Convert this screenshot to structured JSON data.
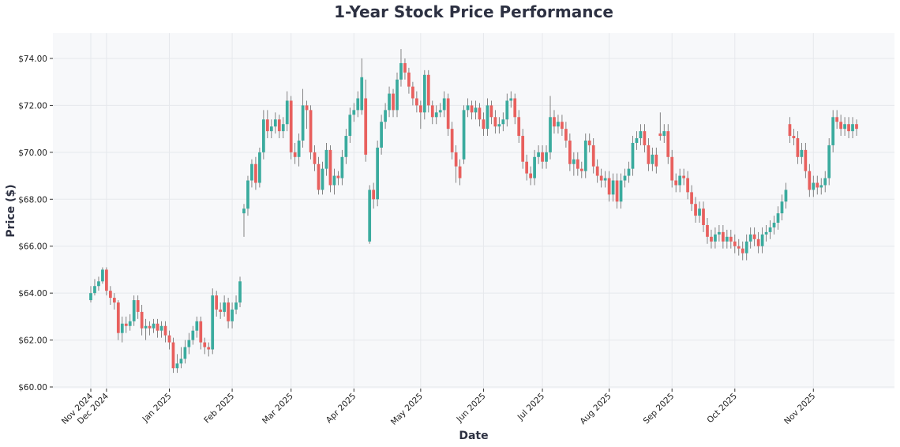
{
  "chart_data": {
    "type": "candlestick",
    "title": "1-Year Stock Price Performance",
    "xlabel": "Date",
    "ylabel": "Price ($)",
    "ylim": [
      60,
      75
    ],
    "y_ticks": [
      "$60.00",
      "$62.00",
      "$64.00",
      "$66.00",
      "$68.00",
      "$70.00",
      "$72.00",
      "$74.00"
    ],
    "y_tick_values": [
      60,
      62,
      64,
      66,
      68,
      70,
      72,
      74
    ],
    "x_ticks": [
      {
        "label": "Nov 2024",
        "at": 0
      },
      {
        "label": "Dec 2024",
        "at": 4
      },
      {
        "label": "Jan 2025",
        "at": 20
      },
      {
        "label": "Feb 2025",
        "at": 36
      },
      {
        "label": "Mar 2025",
        "at": 51
      },
      {
        "label": "Apr 2025",
        "at": 67
      },
      {
        "label": "May 2025",
        "at": 84
      },
      {
        "label": "Jun 2025",
        "at": 100
      },
      {
        "label": "Jul 2025",
        "at": 115
      },
      {
        "label": "Aug 2025",
        "at": 132
      },
      {
        "label": "Sep 2025",
        "at": 148
      },
      {
        "label": "Oct 2025",
        "at": 164
      },
      {
        "label": "Nov 2025",
        "at": 184
      }
    ],
    "grid": true,
    "colors": {
      "up": "#3aab9e",
      "down": "#e8605e",
      "wick": "#666666",
      "background": "#f7f8fa"
    },
    "ohlc_fields": [
      "open",
      "high",
      "low",
      "close"
    ],
    "candles": [
      [
        63.7,
        64.3,
        63.6,
        64.0
      ],
      [
        64.0,
        64.6,
        63.9,
        64.3
      ],
      [
        64.3,
        64.7,
        64.1,
        64.5
      ],
      [
        64.5,
        65.1,
        64.4,
        65.0
      ],
      [
        65.0,
        65.1,
        63.9,
        64.1
      ],
      [
        64.1,
        64.3,
        63.5,
        63.8
      ],
      [
        63.8,
        64.0,
        63.3,
        63.6
      ],
      [
        63.6,
        63.7,
        62.0,
        62.3
      ],
      [
        62.3,
        63.0,
        61.9,
        62.7
      ],
      [
        62.7,
        63.0,
        62.3,
        62.6
      ],
      [
        62.6,
        63.1,
        62.4,
        62.8
      ],
      [
        62.8,
        63.9,
        62.6,
        63.7
      ],
      [
        63.7,
        63.9,
        62.9,
        63.2
      ],
      [
        63.2,
        63.5,
        62.2,
        62.5
      ],
      [
        62.5,
        62.9,
        62.0,
        62.6
      ],
      [
        62.6,
        62.8,
        62.2,
        62.5
      ],
      [
        62.5,
        62.9,
        62.3,
        62.7
      ],
      [
        62.7,
        62.9,
        62.1,
        62.4
      ],
      [
        62.4,
        62.8,
        62.1,
        62.6
      ],
      [
        62.6,
        62.8,
        61.9,
        62.2
      ],
      [
        62.2,
        62.4,
        61.6,
        61.9
      ],
      [
        61.9,
        62.1,
        60.6,
        60.8
      ],
      [
        60.8,
        61.4,
        60.6,
        61.0
      ],
      [
        61.0,
        61.7,
        60.8,
        61.2
      ],
      [
        61.2,
        62.0,
        61.0,
        61.7
      ],
      [
        61.7,
        62.3,
        61.4,
        62.0
      ],
      [
        62.0,
        62.6,
        61.8,
        62.4
      ],
      [
        62.4,
        63.0,
        62.1,
        62.8
      ],
      [
        62.8,
        63.0,
        61.6,
        61.9
      ],
      [
        61.9,
        62.1,
        61.4,
        61.7
      ],
      [
        61.7,
        61.9,
        61.3,
        61.6
      ],
      [
        61.6,
        64.2,
        61.4,
        63.9
      ],
      [
        63.9,
        64.1,
        63.0,
        63.3
      ],
      [
        63.3,
        63.6,
        62.9,
        63.2
      ],
      [
        63.2,
        63.9,
        63.0,
        63.6
      ],
      [
        63.6,
        63.8,
        62.5,
        62.8
      ],
      [
        62.8,
        63.6,
        62.5,
        63.3
      ],
      [
        63.3,
        63.9,
        63.1,
        63.6
      ],
      [
        63.6,
        64.7,
        63.4,
        64.5
      ],
      [
        67.4,
        67.8,
        66.4,
        67.6
      ],
      [
        67.6,
        69.0,
        67.3,
        68.8
      ],
      [
        68.8,
        69.7,
        68.5,
        69.5
      ],
      [
        69.5,
        69.8,
        68.4,
        68.7
      ],
      [
        68.7,
        70.2,
        68.5,
        70.0
      ],
      [
        70.0,
        71.8,
        69.7,
        71.4
      ],
      [
        71.4,
        71.8,
        70.6,
        70.9
      ],
      [
        70.9,
        71.4,
        70.6,
        71.1
      ],
      [
        71.1,
        71.7,
        70.8,
        71.4
      ],
      [
        71.4,
        71.6,
        70.6,
        70.9
      ],
      [
        70.9,
        71.5,
        70.6,
        71.2
      ],
      [
        71.2,
        72.6,
        70.9,
        72.2
      ],
      [
        72.2,
        72.4,
        69.7,
        70.0
      ],
      [
        70.0,
        70.4,
        69.5,
        69.8
      ],
      [
        69.8,
        70.8,
        69.4,
        70.5
      ],
      [
        70.5,
        72.7,
        70.2,
        72.0
      ],
      [
        72.0,
        72.2,
        71.0,
        71.8
      ],
      [
        71.8,
        72.0,
        69.7,
        70.0
      ],
      [
        70.0,
        70.3,
        69.2,
        69.5
      ],
      [
        69.5,
        69.8,
        68.2,
        68.4
      ],
      [
        68.4,
        69.6,
        68.2,
        69.3
      ],
      [
        69.3,
        70.4,
        69.0,
        70.1
      ],
      [
        70.1,
        70.3,
        68.3,
        68.6
      ],
      [
        68.6,
        69.3,
        68.2,
        69.0
      ],
      [
        69.0,
        69.2,
        68.6,
        68.9
      ],
      [
        68.9,
        70.1,
        68.6,
        69.8
      ],
      [
        69.8,
        71.0,
        69.5,
        70.7
      ],
      [
        70.7,
        71.9,
        70.4,
        71.6
      ],
      [
        71.6,
        72.1,
        71.3,
        71.8
      ],
      [
        71.8,
        72.6,
        71.5,
        72.3
      ],
      [
        71.8,
        74.0,
        71.6,
        73.2
      ],
      [
        72.3,
        73.1,
        69.6,
        69.9
      ],
      [
        66.2,
        68.6,
        66.1,
        68.4
      ],
      [
        68.4,
        68.7,
        67.6,
        68.0
      ],
      [
        68.0,
        70.5,
        67.7,
        70.2
      ],
      [
        70.2,
        71.6,
        69.9,
        71.3
      ],
      [
        71.3,
        72.1,
        71.0,
        71.8
      ],
      [
        71.8,
        72.8,
        71.5,
        72.5
      ],
      [
        72.5,
        72.7,
        71.5,
        71.8
      ],
      [
        71.8,
        73.4,
        71.5,
        73.1
      ],
      [
        73.1,
        74.4,
        72.8,
        73.8
      ],
      [
        73.8,
        74.0,
        73.1,
        73.4
      ],
      [
        73.4,
        73.6,
        72.5,
        72.8
      ],
      [
        72.8,
        73.0,
        72.0,
        72.3
      ],
      [
        72.3,
        72.6,
        71.7,
        72.0
      ],
      [
        72.0,
        72.2,
        71.0,
        71.7
      ],
      [
        71.7,
        73.5,
        71.4,
        73.3
      ],
      [
        73.3,
        73.5,
        71.7,
        72.0
      ],
      [
        72.0,
        72.2,
        71.2,
        71.5
      ],
      [
        71.5,
        72.0,
        71.2,
        71.7
      ],
      [
        71.7,
        72.1,
        71.5,
        71.8
      ],
      [
        71.8,
        72.6,
        71.5,
        72.3
      ],
      [
        72.3,
        72.5,
        70.7,
        71.0
      ],
      [
        71.0,
        71.3,
        69.7,
        70.0
      ],
      [
        70.0,
        70.3,
        68.7,
        69.4
      ],
      [
        69.4,
        69.7,
        68.6,
        68.9
      ],
      [
        69.7,
        72.0,
        69.5,
        71.8
      ],
      [
        71.8,
        72.3,
        71.5,
        72.0
      ],
      [
        72.0,
        72.2,
        71.4,
        71.7
      ],
      [
        71.7,
        72.2,
        71.4,
        71.9
      ],
      [
        71.9,
        72.1,
        71.1,
        71.4
      ],
      [
        71.4,
        71.7,
        70.7,
        71.0
      ],
      [
        71.0,
        72.3,
        70.7,
        72.0
      ],
      [
        72.0,
        72.2,
        71.2,
        71.5
      ],
      [
        71.5,
        71.8,
        70.8,
        71.1
      ],
      [
        71.1,
        71.5,
        70.8,
        71.2
      ],
      [
        71.2,
        71.7,
        70.9,
        71.4
      ],
      [
        71.4,
        72.5,
        71.1,
        72.2
      ],
      [
        72.2,
        72.6,
        71.9,
        72.3
      ],
      [
        72.3,
        72.5,
        71.2,
        71.5
      ],
      [
        71.5,
        71.8,
        70.4,
        70.7
      ],
      [
        70.7,
        71.0,
        69.3,
        69.6
      ],
      [
        69.6,
        69.9,
        68.8,
        69.1
      ],
      [
        69.1,
        69.4,
        68.6,
        68.9
      ],
      [
        68.9,
        70.1,
        68.6,
        69.8
      ],
      [
        69.8,
        70.3,
        69.5,
        70.0
      ],
      [
        70.0,
        70.3,
        69.3,
        69.6
      ],
      [
        69.6,
        70.3,
        69.3,
        70.0
      ],
      [
        70.0,
        72.4,
        69.7,
        71.5
      ],
      [
        71.5,
        71.8,
        70.8,
        71.1
      ],
      [
        71.1,
        71.6,
        70.8,
        71.3
      ],
      [
        71.3,
        71.6,
        70.7,
        71.0
      ],
      [
        71.0,
        71.3,
        70.2,
        70.5
      ],
      [
        70.5,
        70.8,
        69.2,
        69.5
      ],
      [
        69.5,
        70.0,
        69.0,
        69.7
      ],
      [
        69.7,
        70.0,
        69.0,
        69.3
      ],
      [
        69.3,
        69.6,
        68.9,
        69.2
      ],
      [
        69.2,
        70.8,
        68.9,
        70.5
      ],
      [
        70.5,
        70.8,
        70.0,
        70.3
      ],
      [
        70.3,
        70.6,
        69.1,
        69.4
      ],
      [
        69.4,
        69.7,
        68.7,
        69.0
      ],
      [
        69.0,
        69.3,
        68.5,
        68.8
      ],
      [
        68.8,
        69.2,
        68.5,
        68.9
      ],
      [
        68.9,
        69.2,
        67.9,
        68.2
      ],
      [
        68.2,
        69.1,
        67.9,
        68.8
      ],
      [
        68.8,
        69.1,
        67.6,
        67.9
      ],
      [
        67.9,
        69.1,
        67.6,
        68.8
      ],
      [
        68.8,
        69.3,
        68.5,
        69.0
      ],
      [
        69.0,
        69.6,
        68.7,
        69.3
      ],
      [
        69.3,
        70.7,
        69.0,
        70.4
      ],
      [
        70.4,
        70.9,
        70.1,
        70.6
      ],
      [
        70.6,
        71.2,
        70.3,
        70.9
      ],
      [
        70.9,
        71.2,
        70.0,
        70.3
      ],
      [
        70.3,
        70.6,
        69.2,
        69.5
      ],
      [
        69.5,
        70.2,
        69.2,
        69.9
      ],
      [
        69.9,
        70.2,
        69.1,
        69.4
      ],
      [
        70.8,
        71.7,
        70.5,
        70.7
      ],
      [
        70.7,
        71.2,
        70.4,
        70.9
      ],
      [
        70.9,
        71.2,
        69.5,
        69.8
      ],
      [
        69.8,
        70.1,
        68.5,
        68.8
      ],
      [
        68.8,
        69.1,
        68.3,
        68.6
      ],
      [
        68.6,
        69.3,
        68.3,
        69.0
      ],
      [
        69.0,
        69.3,
        68.6,
        68.9
      ],
      [
        68.9,
        69.2,
        68.0,
        68.3
      ],
      [
        68.3,
        68.6,
        67.5,
        67.8
      ],
      [
        67.8,
        68.1,
        67.0,
        67.3
      ],
      [
        67.3,
        67.9,
        67.0,
        67.6
      ],
      [
        67.6,
        67.9,
        66.6,
        66.9
      ],
      [
        66.9,
        67.2,
        66.1,
        66.4
      ],
      [
        66.4,
        66.7,
        65.9,
        66.2
      ],
      [
        66.2,
        66.8,
        65.9,
        66.5
      ],
      [
        66.5,
        66.9,
        66.2,
        66.6
      ],
      [
        66.6,
        66.9,
        65.9,
        66.2
      ],
      [
        66.2,
        66.7,
        65.9,
        66.4
      ],
      [
        66.4,
        66.7,
        65.9,
        66.2
      ],
      [
        66.2,
        66.5,
        65.7,
        66.0
      ],
      [
        66.0,
        66.3,
        65.6,
        65.9
      ],
      [
        65.9,
        66.2,
        65.4,
        65.7
      ],
      [
        65.7,
        66.5,
        65.4,
        66.2
      ],
      [
        66.2,
        66.8,
        65.9,
        66.5
      ],
      [
        66.5,
        66.8,
        66.0,
        66.3
      ],
      [
        66.3,
        66.6,
        65.7,
        66.0
      ],
      [
        66.0,
        66.8,
        65.7,
        66.5
      ],
      [
        66.5,
        66.9,
        66.2,
        66.6
      ],
      [
        66.6,
        67.1,
        66.3,
        66.8
      ],
      [
        66.8,
        67.3,
        66.5,
        67.0
      ],
      [
        67.0,
        67.7,
        66.7,
        67.4
      ],
      [
        67.4,
        68.2,
        67.1,
        67.9
      ],
      [
        67.9,
        68.7,
        67.6,
        68.4
      ],
      [
        71.2,
        71.5,
        70.4,
        70.7
      ],
      [
        70.7,
        71.0,
        70.3,
        70.6
      ],
      [
        70.6,
        70.9,
        69.5,
        69.8
      ],
      [
        69.8,
        70.4,
        69.5,
        70.1
      ],
      [
        70.1,
        70.4,
        68.9,
        69.2
      ],
      [
        69.2,
        69.5,
        68.1,
        68.4
      ],
      [
        68.4,
        69.0,
        68.1,
        68.7
      ],
      [
        68.7,
        69.0,
        68.2,
        68.5
      ],
      [
        68.5,
        68.9,
        68.2,
        68.6
      ],
      [
        68.6,
        69.2,
        68.3,
        68.9
      ],
      [
        68.9,
        70.6,
        68.6,
        70.3
      ],
      [
        70.3,
        71.8,
        70.0,
        71.5
      ],
      [
        71.5,
        71.8,
        71.0,
        71.3
      ],
      [
        71.3,
        71.6,
        70.7,
        71.0
      ],
      [
        71.0,
        71.5,
        70.7,
        71.2
      ],
      [
        71.2,
        71.5,
        70.6,
        70.9
      ],
      [
        70.9,
        71.5,
        70.6,
        71.2
      ],
      [
        71.2,
        71.4,
        70.7,
        71.0
      ]
    ]
  }
}
